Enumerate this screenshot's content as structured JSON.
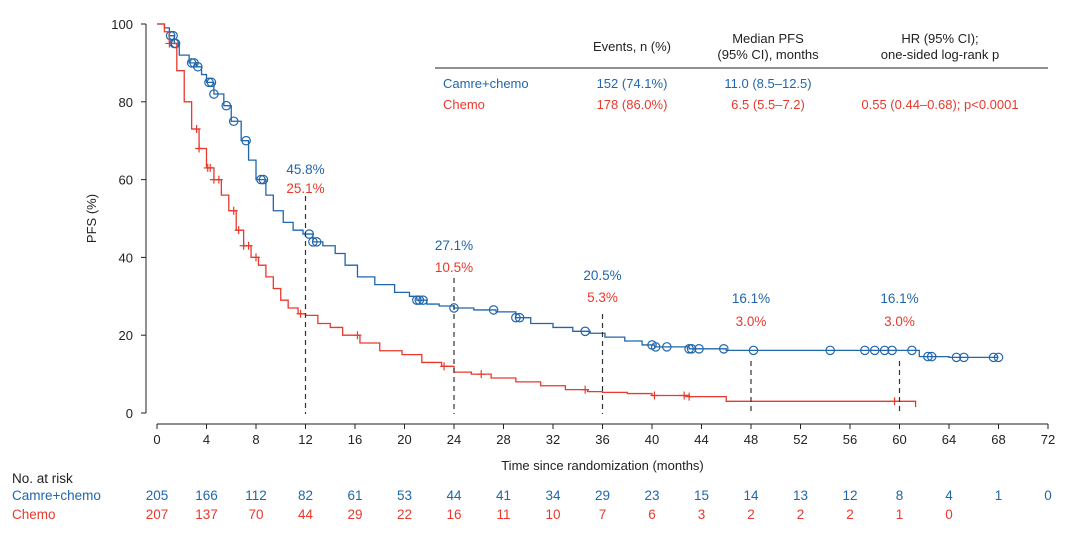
{
  "colors": {
    "camre": "#2166ac",
    "chemo": "#e8392c",
    "axis": "#222222"
  },
  "chart_data": {
    "type": "line",
    "subtype": "kaplan-meier",
    "title": "",
    "xlabel": "Time since randomization (months)",
    "ylabel": "PFS (%)",
    "xlim": [
      0,
      72
    ],
    "ylim": [
      0,
      100
    ],
    "xticks": [
      0,
      4,
      8,
      12,
      16,
      20,
      24,
      28,
      32,
      36,
      40,
      44,
      48,
      52,
      56,
      60,
      64,
      68,
      72
    ],
    "yticks": [
      0,
      20,
      40,
      60,
      80,
      100
    ],
    "grid": false,
    "series": [
      {
        "name": "Camre+chemo",
        "color": "#2166ac",
        "censor_marker": "circle",
        "x": [
          0,
          0.6,
          1.0,
          1.4,
          1.8,
          2.6,
          3.2,
          3.6,
          4.0,
          4.6,
          5.4,
          6.0,
          6.8,
          7.4,
          8.0,
          8.8,
          9.4,
          10.2,
          11.0,
          11.8,
          12.6,
          13.4,
          14.4,
          15.2,
          16.2,
          17.6,
          19.2,
          20.4,
          21.0,
          21.8,
          22.8,
          24.0,
          25.6,
          27.4,
          29.0,
          30.2,
          32.0,
          33.6,
          35.0,
          36.2,
          37.8,
          39.2,
          40.2,
          43.0,
          46.0,
          48.0,
          52.0,
          56.0,
          60.0,
          61.6,
          64.0,
          68.0
        ],
        "y": [
          100,
          99,
          97,
          95,
          92,
          90,
          89,
          87,
          85,
          82,
          79,
          75,
          70,
          65,
          60,
          56,
          52,
          49,
          47,
          46,
          44,
          43,
          41,
          38,
          35,
          33,
          31,
          30,
          29,
          28,
          27.5,
          27,
          26.5,
          26,
          24.5,
          23,
          22,
          21,
          20.5,
          19.5,
          18.5,
          17.5,
          17,
          16.5,
          16.1,
          16.1,
          16.1,
          16.1,
          16.1,
          14.5,
          14.3,
          14.3
        ],
        "censor_x": [
          1.1,
          1.3,
          1.4,
          1.5,
          2.8,
          3.0,
          3.3,
          4.2,
          4.4,
          4.6,
          5.6,
          6.2,
          7.2,
          8.4,
          8.6,
          12.3,
          12.6,
          12.9,
          21.0,
          21.2,
          21.5,
          24.0,
          27.2,
          29.0,
          29.3,
          34.6,
          40.0,
          40.3,
          41.2,
          43.0,
          43.2,
          43.8,
          45.8,
          48.2,
          54.4,
          57.2,
          58.0,
          58.8,
          59.4,
          61.0,
          62.3,
          62.6,
          64.6,
          65.2,
          67.6,
          68.0
        ],
        "landmarks": [
          {
            "month": 12,
            "value": "45.8%"
          },
          {
            "month": 24,
            "value": "27.1%"
          },
          {
            "month": 36,
            "value": "20.5%"
          },
          {
            "month": 48,
            "value": "16.1%"
          },
          {
            "month": 60,
            "value": "16.1%"
          }
        ]
      },
      {
        "name": "Chemo",
        "color": "#e8392c",
        "censor_marker": "plus",
        "x": [
          0,
          0.6,
          1.0,
          1.6,
          2.2,
          2.8,
          3.4,
          4.0,
          4.6,
          5.2,
          5.8,
          6.4,
          7.0,
          7.6,
          8.2,
          8.8,
          9.4,
          10.0,
          10.6,
          11.4,
          12.0,
          13.0,
          14.0,
          15.0,
          16.4,
          18.0,
          19.8,
          21.4,
          23.0,
          24.0,
          25.4,
          27.0,
          29.0,
          31.0,
          33.0,
          34.8,
          36.0,
          38.0,
          40.0,
          43.0,
          46.0,
          48.0,
          52.0,
          56.0,
          60.0,
          61.3
        ],
        "y": [
          100,
          98,
          95,
          88,
          80,
          73,
          68,
          63,
          60,
          56,
          52,
          47,
          43,
          40,
          38,
          35,
          32,
          29,
          27,
          25.5,
          25.1,
          23,
          22,
          20,
          18,
          16,
          15,
          13,
          12,
          10.5,
          10,
          9,
          8,
          7,
          6,
          5.5,
          5.3,
          5,
          4.5,
          4.2,
          3.0,
          3.0,
          3.0,
          3.0,
          3.0,
          1.5
        ],
        "censor_x": [
          1.0,
          3.2,
          3.4,
          4.1,
          4.3,
          4.6,
          5.0,
          6.2,
          6.6,
          7.0,
          7.4,
          8.0,
          11.6,
          16.2,
          23.2,
          26.2,
          34.6,
          40.2,
          42.6,
          43.0,
          59.6
        ],
        "landmarks": [
          {
            "month": 12,
            "value": "25.1%"
          },
          {
            "month": 24,
            "value": "10.5%"
          },
          {
            "month": 36,
            "value": "5.3%"
          },
          {
            "month": 48,
            "value": "3.0%"
          },
          {
            "month": 60,
            "value": "3.0%"
          }
        ]
      }
    ],
    "legend_table": {
      "headers": [
        [
          "",
          ""
        ],
        [
          "Events, n (%)",
          ""
        ],
        [
          "Median PFS",
          "(95% CI), months"
        ],
        [
          "HR (95% CI);",
          "one-sided log-rank p"
        ]
      ],
      "rows": [
        {
          "label": "Camre+chemo",
          "events": "152 (74.1%)",
          "median": "11.0 (8.5–12.5)",
          "hr": ""
        },
        {
          "label": "Chemo",
          "events": "178 (86.0%)",
          "median": "6.5 (5.5–7.2)",
          "hr": "0.55 (0.44–0.68); p<0.0001"
        }
      ]
    },
    "risk_table": {
      "title": "No. at risk",
      "months": [
        0,
        4,
        8,
        12,
        16,
        20,
        24,
        28,
        32,
        36,
        40,
        44,
        48,
        52,
        56,
        60,
        64,
        68,
        72
      ],
      "rows": [
        {
          "label": "Camre+chemo",
          "values": [
            "205",
            "166",
            "112",
            "82",
            "61",
            "53",
            "44",
            "41",
            "34",
            "29",
            "23",
            "15",
            "14",
            "13",
            "12",
            "8",
            "4",
            "1",
            "0"
          ]
        },
        {
          "label": "Chemo",
          "values": [
            "207",
            "137",
            "70",
            "44",
            "29",
            "22",
            "16",
            "11",
            "10",
            "7",
            "6",
            "3",
            "2",
            "2",
            "2",
            "1",
            "0",
            "",
            ""
          ]
        }
      ]
    }
  }
}
